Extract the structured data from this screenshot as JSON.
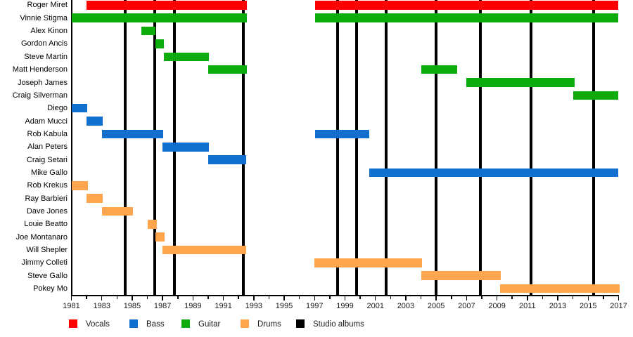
{
  "chart_data": {
    "type": "timeline-gantt",
    "description": "Band members timeline with studio album markers",
    "x_axis": {
      "start": 1981,
      "end": 2017,
      "minor_tick_every": 1,
      "labeled_tick_every": 2,
      "tick_labels": [
        "1981",
        "1983",
        "1985",
        "1987",
        "1989",
        "1991",
        "1993",
        "1995",
        "1997",
        "1999",
        "2001",
        "2003",
        "2005",
        "2007",
        "2009",
        "2011",
        "2013",
        "2015",
        "2017"
      ]
    },
    "colors": {
      "vocals": "#fe0000",
      "bass": "#1170ce",
      "guitar": "#0cac0c",
      "drums": "#ffa54d",
      "studio_albums": "#000000"
    },
    "legend": [
      {
        "key": "vocals",
        "label": "Vocals"
      },
      {
        "key": "bass",
        "label": "Bass"
      },
      {
        "key": "guitar",
        "label": "Guitar"
      },
      {
        "key": "drums",
        "label": "Drums"
      },
      {
        "key": "studio_albums",
        "label": "Studio albums"
      }
    ],
    "album_marker_years": [
      1984.55,
      1986.5,
      1987.8,
      1992.3,
      1998.5,
      1999.75,
      2001.7,
      2005.0,
      2007.9,
      2011.25,
      2015.35
    ],
    "rows": [
      {
        "name": "Roger Miret",
        "role": "vocals",
        "segments": [
          [
            1982.0,
            1992.55
          ],
          [
            1997.05,
            2017.0
          ]
        ]
      },
      {
        "name": "Vinnie Stigma",
        "role": "guitar",
        "segments": [
          [
            1981.0,
            1992.55
          ],
          [
            1997.05,
            2017.0
          ]
        ]
      },
      {
        "name": "Alex Kinon",
        "role": "guitar",
        "segments": [
          [
            1985.6,
            1986.55
          ]
        ]
      },
      {
        "name": "Gordon Ancis",
        "role": "guitar",
        "segments": [
          [
            1986.55,
            1987.1
          ]
        ]
      },
      {
        "name": "Steve Martin",
        "role": "guitar",
        "segments": [
          [
            1987.1,
            1990.05
          ]
        ]
      },
      {
        "name": "Matt Henderson",
        "role": "guitar",
        "segments": [
          [
            1990.0,
            1992.55
          ],
          [
            2004.0,
            2006.4
          ]
        ]
      },
      {
        "name": "Joseph James",
        "role": "guitar",
        "segments": [
          [
            2007.0,
            2014.1
          ]
        ]
      },
      {
        "name": "Craig Silverman",
        "role": "guitar",
        "segments": [
          [
            2014.0,
            2017.0
          ]
        ]
      },
      {
        "name": "Diego",
        "role": "bass",
        "segments": [
          [
            1981.0,
            1982.05
          ]
        ]
      },
      {
        "name": "Adam Mucci",
        "role": "bass",
        "segments": [
          [
            1982.0,
            1983.05
          ]
        ]
      },
      {
        "name": "Rob Kabula",
        "role": "bass",
        "segments": [
          [
            1983.0,
            1987.05
          ],
          [
            1997.05,
            2000.6
          ]
        ]
      },
      {
        "name": "Alan Peters",
        "role": "bass",
        "segments": [
          [
            1987.0,
            1990.05
          ]
        ]
      },
      {
        "name": "Craig Setari",
        "role": "bass",
        "segments": [
          [
            1990.0,
            1992.5
          ]
        ]
      },
      {
        "name": "Mike Gallo",
        "role": "bass",
        "segments": [
          [
            2000.6,
            2017.0
          ]
        ]
      },
      {
        "name": "Rob Krekus",
        "role": "drums",
        "segments": [
          [
            1981.0,
            1982.1
          ]
        ]
      },
      {
        "name": "Ray Barbieri",
        "role": "drums",
        "segments": [
          [
            1982.0,
            1983.05
          ]
        ]
      },
      {
        "name": "Dave Jones",
        "role": "drums",
        "segments": [
          [
            1983.0,
            1985.05
          ]
        ]
      },
      {
        "name": "Louie Beatto",
        "role": "drums",
        "segments": [
          [
            1986.0,
            1986.6
          ]
        ]
      },
      {
        "name": "Joe Montanaro",
        "role": "drums",
        "segments": [
          [
            1986.55,
            1987.15
          ]
        ]
      },
      {
        "name": "Will Shepler",
        "role": "drums",
        "segments": [
          [
            1987.0,
            1992.5
          ]
        ]
      },
      {
        "name": "Jimmy Colleti",
        "role": "drums",
        "segments": [
          [
            1997.0,
            2004.05
          ]
        ]
      },
      {
        "name": "Steve Gallo",
        "role": "drums",
        "segments": [
          [
            2004.0,
            2009.25
          ]
        ]
      },
      {
        "name": "Pokey Mo",
        "role": "drums",
        "segments": [
          [
            2009.2,
            2017.05
          ]
        ]
      }
    ]
  }
}
